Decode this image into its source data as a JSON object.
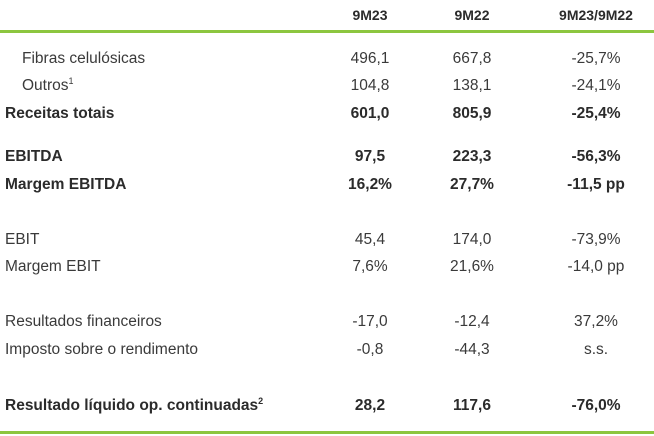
{
  "accent": "#8cc63f",
  "header": {
    "col1": "9M23",
    "col2": "9M22",
    "col3": "9M23/9M22"
  },
  "rows": [
    {
      "label": "Fibras celulósicas",
      "v1": "496,1",
      "v2": "667,8",
      "v3": "-25,7%"
    },
    {
      "label": "Outros",
      "sup": "1",
      "v1": "104,8",
      "v2": "138,1",
      "v3": "-24,1%"
    },
    {
      "label": "Receitas totais",
      "v1": "601,0",
      "v2": "805,9",
      "v3": "-25,4%"
    },
    {
      "label": "EBITDA",
      "v1": "97,5",
      "v2": "223,3",
      "v3": "-56,3%"
    },
    {
      "label": "Margem EBITDA",
      "v1": "16,2%",
      "v2": "27,7%",
      "v3": "-11,5 pp"
    },
    {
      "label": "EBIT",
      "v1": "45,4",
      "v2": "174,0",
      "v3": "-73,9%"
    },
    {
      "label": "Margem EBIT",
      "v1": "7,6%",
      "v2": "21,6%",
      "v3": "-14,0 pp"
    },
    {
      "label": "Resultados financeiros",
      "v1": "-17,0",
      "v2": "-12,4",
      "v3": "37,2%"
    },
    {
      "label": "Imposto sobre o rendimento",
      "v1": "-0,8",
      "v2": "-44,3",
      "v3": "s.s."
    },
    {
      "label": "Resultado líquido op. continuadas",
      "sup": "2",
      "v1": "28,2",
      "v2": "117,6",
      "v3": "-76,0%"
    }
  ]
}
